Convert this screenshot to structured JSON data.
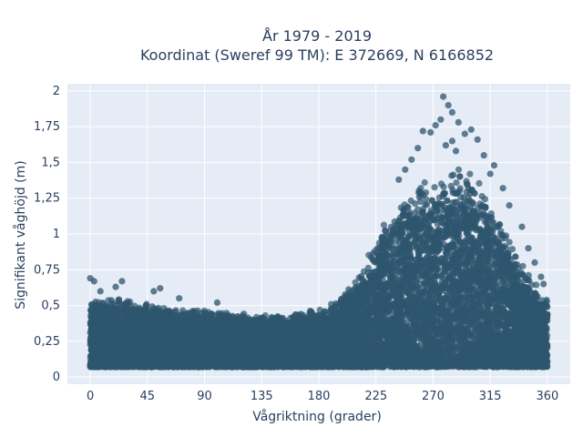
{
  "chart_data": {
    "type": "scatter",
    "title_line1": "År 1979 - 2019",
    "title_line2": "Koordinat (Sweref 99 TM): E 372669, N 6166852",
    "xlabel": "Vågriktning (grader)",
    "ylabel": "Signifikant våghöjd (m)",
    "xlim": [
      -18,
      378
    ],
    "ylim": [
      -0.05,
      2.05
    ],
    "x_ticks": [
      0,
      45,
      90,
      135,
      180,
      225,
      270,
      315,
      360
    ],
    "x_tick_labels": [
      "0",
      "45",
      "90",
      "135",
      "180",
      "225",
      "270",
      "315",
      "360"
    ],
    "y_ticks": [
      0,
      0.25,
      0.5,
      0.75,
      1,
      1.25,
      1.5,
      1.75,
      2
    ],
    "y_tick_labels": [
      "0",
      "0,25",
      "0,5",
      "0,75",
      "1",
      "1,25",
      "1,5",
      "1,75",
      "2"
    ],
    "grid": true,
    "background": "#e5ecf6",
    "marker_color": "#2e566e",
    "x_outliers": [
      278,
      282,
      285,
      276,
      290,
      272,
      300,
      268,
      295,
      262,
      305,
      258,
      285,
      280,
      288,
      310,
      253,
      318,
      248,
      325,
      315,
      243,
      330,
      340,
      345,
      350,
      355,
      357,
      0,
      3,
      8,
      20,
      25,
      50,
      55,
      70,
      100
    ],
    "y_outliers": [
      1.96,
      1.9,
      1.85,
      1.8,
      1.78,
      1.76,
      1.73,
      1.71,
      1.7,
      1.72,
      1.66,
      1.6,
      1.65,
      1.62,
      1.58,
      1.55,
      1.52,
      1.48,
      1.45,
      1.32,
      1.42,
      1.38,
      1.2,
      1.05,
      0.9,
      0.8,
      0.7,
      0.65,
      0.69,
      0.67,
      0.6,
      0.63,
      0.67,
      0.6,
      0.62,
      0.55,
      0.52
    ],
    "envelope_x": [
      0,
      15,
      30,
      45,
      60,
      75,
      90,
      105,
      120,
      135,
      150,
      165,
      180,
      195,
      210,
      225,
      240,
      255,
      270,
      285,
      300,
      315,
      330,
      345,
      360
    ],
    "envelope_y": [
      0.55,
      0.56,
      0.55,
      0.52,
      0.5,
      0.48,
      0.47,
      0.46,
      0.45,
      0.44,
      0.45,
      0.46,
      0.48,
      0.55,
      0.72,
      0.98,
      1.22,
      1.35,
      1.42,
      1.5,
      1.42,
      1.28,
      1.0,
      0.72,
      0.55
    ],
    "point_count": 14000,
    "y_floor": 0.07
  }
}
